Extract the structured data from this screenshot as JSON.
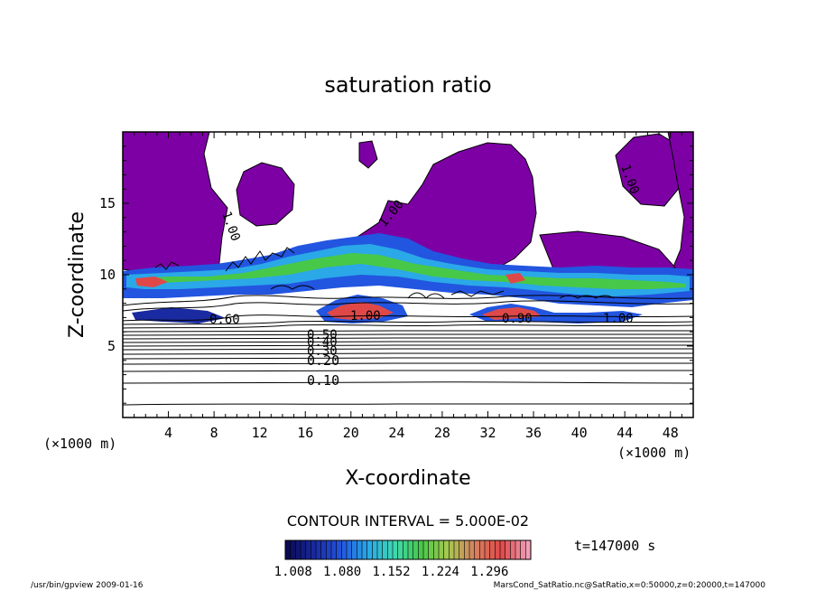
{
  "chart_data": {
    "type": "heatmap",
    "title": "saturation ratio",
    "xlabel": "X-coordinate",
    "ylabel": "Z-coordinate",
    "x_unit_label": "(×1000 m)",
    "z_unit_label": "(×1000 m)",
    "xlim": [
      0,
      50
    ],
    "ylim": [
      0,
      20
    ],
    "x_ticks": [
      4,
      8,
      12,
      16,
      20,
      24,
      28,
      32,
      36,
      40,
      44,
      48
    ],
    "y_ticks": [
      5,
      10,
      15
    ],
    "contour_interval_text": "CONTOUR INTERVAL = 5.000E-02",
    "time_text": "t=147000 s",
    "contour_labels": [
      "0.10",
      "0.20",
      "0.30",
      "0.40",
      "0.50",
      "0.60",
      "0.90",
      "1.00",
      "1.00",
      "1.00",
      "1.00",
      "1.00"
    ],
    "colorbar": {
      "ticks": [
        "1.008",
        "1.080",
        "1.152",
        "1.224",
        "1.296"
      ],
      "colors": [
        "#0a0a55",
        "#1a2aa0",
        "#2255e0",
        "#2aa8e8",
        "#3fd8b0",
        "#48c848",
        "#a8c850",
        "#d88060",
        "#e04848",
        "#f0a0b8"
      ]
    },
    "supersaturated_fill_color": "#7d00a5",
    "contour_levels_isolines": [
      0.1,
      0.2,
      0.3,
      0.4,
      0.5,
      0.6
    ]
  },
  "footer": {
    "left": "/usr/bin/gpview   2009-01-16",
    "right": "MarsCond_SatRatio.nc@SatRatio,x=0:50000,z=0:20000,t=147000"
  }
}
